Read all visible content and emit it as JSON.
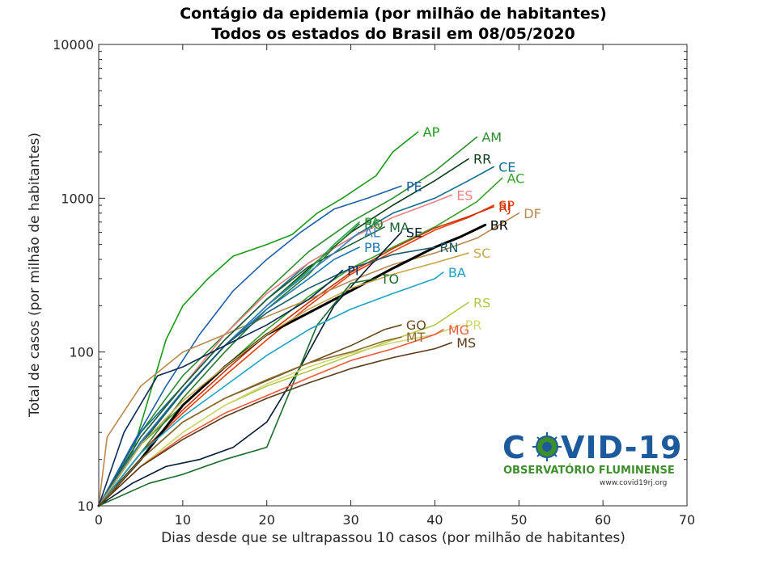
{
  "chart_data": {
    "type": "line",
    "title": "Contágio da epidemia (por milhão de habitantes)",
    "subtitle": "Todos os estados do Brasil em 08/05/2020",
    "xlabel": "Dias desde que se ultrapassou 10 casos (por milhão de habitantes)",
    "ylabel": "Total de casos (por milhão de habitantes)",
    "xlim": [
      0,
      70
    ],
    "ylim": [
      10,
      10000
    ],
    "yscale": "log",
    "xticks": [
      "0",
      "10",
      "20",
      "30",
      "40",
      "50",
      "60",
      "70"
    ],
    "yticks": [
      "10",
      "100",
      "1000",
      "10000"
    ],
    "grid": false,
    "series": [
      {
        "name": "AP",
        "color": "#1a9a1a",
        "points": [
          [
            0,
            10
          ],
          [
            4,
            22
          ],
          [
            8,
            120
          ],
          [
            10,
            200
          ],
          [
            13,
            300
          ],
          [
            16,
            420
          ],
          [
            20,
            500
          ],
          [
            23,
            580
          ],
          [
            26,
            800
          ],
          [
            29,
            1000
          ],
          [
            33,
            1400
          ],
          [
            35,
            2000
          ],
          [
            38,
            2700
          ]
        ]
      },
      {
        "name": "AM",
        "color": "#2e8b2e",
        "points": [
          [
            0,
            10
          ],
          [
            5,
            30
          ],
          [
            10,
            70
          ],
          [
            15,
            130
          ],
          [
            20,
            250
          ],
          [
            25,
            450
          ],
          [
            30,
            700
          ],
          [
            35,
            1000
          ],
          [
            40,
            1500
          ],
          [
            45,
            2500
          ]
        ]
      },
      {
        "name": "RR",
        "color": "#0d3d1a",
        "points": [
          [
            0,
            10
          ],
          [
            5,
            25
          ],
          [
            10,
            55
          ],
          [
            15,
            110
          ],
          [
            20,
            200
          ],
          [
            25,
            350
          ],
          [
            30,
            600
          ],
          [
            35,
            900
          ],
          [
            40,
            1300
          ],
          [
            44,
            1800
          ]
        ]
      },
      {
        "name": "CE",
        "color": "#0b6e8c",
        "points": [
          [
            0,
            10
          ],
          [
            5,
            30
          ],
          [
            10,
            60
          ],
          [
            15,
            120
          ],
          [
            20,
            220
          ],
          [
            25,
            380
          ],
          [
            30,
            550
          ],
          [
            35,
            800
          ],
          [
            40,
            1000
          ],
          [
            44,
            1300
          ],
          [
            47,
            1600
          ]
        ]
      },
      {
        "name": "AC",
        "color": "#3aa02a",
        "points": [
          [
            0,
            10
          ],
          [
            5,
            25
          ],
          [
            10,
            45
          ],
          [
            15,
            80
          ],
          [
            20,
            140
          ],
          [
            25,
            230
          ],
          [
            30,
            350
          ],
          [
            35,
            480
          ],
          [
            40,
            650
          ],
          [
            45,
            950
          ],
          [
            48,
            1350
          ]
        ]
      },
      {
        "name": "PE",
        "color": "#1d5ea8",
        "points": [
          [
            0,
            10
          ],
          [
            4,
            25
          ],
          [
            8,
            60
          ],
          [
            12,
            130
          ],
          [
            16,
            250
          ],
          [
            20,
            400
          ],
          [
            24,
            600
          ],
          [
            28,
            850
          ],
          [
            32,
            1000
          ],
          [
            36,
            1200
          ]
        ]
      },
      {
        "name": "ES",
        "color": "#f08080",
        "points": [
          [
            0,
            10
          ],
          [
            5,
            28
          ],
          [
            10,
            60
          ],
          [
            15,
            130
          ],
          [
            20,
            240
          ],
          [
            25,
            380
          ],
          [
            30,
            550
          ],
          [
            35,
            750
          ],
          [
            40,
            950
          ],
          [
            42,
            1050
          ]
        ]
      },
      {
        "name": "SP",
        "color": "#e84010",
        "points": [
          [
            0,
            10
          ],
          [
            5,
            22
          ],
          [
            10,
            40
          ],
          [
            15,
            70
          ],
          [
            20,
            120
          ],
          [
            25,
            200
          ],
          [
            30,
            320
          ],
          [
            35,
            450
          ],
          [
            40,
            620
          ],
          [
            44,
            750
          ],
          [
            47,
            900
          ]
        ]
      },
      {
        "name": "RJ",
        "color": "#cc3300",
        "points": [
          [
            0,
            10
          ],
          [
            5,
            22
          ],
          [
            10,
            42
          ],
          [
            15,
            75
          ],
          [
            20,
            130
          ],
          [
            25,
            210
          ],
          [
            30,
            330
          ],
          [
            35,
            470
          ],
          [
            40,
            640
          ],
          [
            44,
            760
          ],
          [
            47,
            880
          ]
        ]
      },
      {
        "name": "DF",
        "color": "#b8894e",
        "points": [
          [
            0,
            10
          ],
          [
            1,
            28
          ],
          [
            5,
            60
          ],
          [
            10,
            100
          ],
          [
            15,
            130
          ],
          [
            20,
            170
          ],
          [
            25,
            220
          ],
          [
            30,
            290
          ],
          [
            35,
            370
          ],
          [
            40,
            440
          ],
          [
            45,
            550
          ],
          [
            50,
            800
          ]
        ]
      },
      {
        "name": "BR",
        "color": "#000000",
        "points": [
          [
            0,
            10
          ],
          [
            5,
            20
          ],
          [
            10,
            45
          ],
          [
            15,
            80
          ],
          [
            20,
            130
          ],
          [
            25,
            180
          ],
          [
            30,
            250
          ],
          [
            35,
            350
          ],
          [
            40,
            480
          ],
          [
            43,
            560
          ],
          [
            46,
            670
          ]
        ]
      },
      {
        "name": "MA",
        "color": "#1a5e32",
        "points": [
          [
            0,
            10
          ],
          [
            5,
            28
          ],
          [
            10,
            60
          ],
          [
            15,
            120
          ],
          [
            20,
            220
          ],
          [
            25,
            360
          ],
          [
            30,
            500
          ],
          [
            34,
            650
          ]
        ]
      },
      {
        "name": "PA",
        "color": "#22aa44",
        "points": [
          [
            0,
            10
          ],
          [
            5,
            25
          ],
          [
            10,
            55
          ],
          [
            15,
            110
          ],
          [
            20,
            200
          ],
          [
            25,
            340
          ],
          [
            28,
            500
          ],
          [
            31,
            700
          ]
        ]
      },
      {
        "name": "RO",
        "color": "#2b7a2b",
        "points": [
          [
            0,
            10
          ],
          [
            5,
            22
          ],
          [
            10,
            50
          ],
          [
            15,
            100
          ],
          [
            20,
            190
          ],
          [
            25,
            320
          ],
          [
            28,
            480
          ],
          [
            31,
            680
          ]
        ]
      },
      {
        "name": "AL",
        "color": "#3b7fbf",
        "points": [
          [
            0,
            10
          ],
          [
            5,
            26
          ],
          [
            10,
            56
          ],
          [
            15,
            110
          ],
          [
            20,
            200
          ],
          [
            25,
            330
          ],
          [
            28,
            440
          ],
          [
            31,
            600
          ]
        ]
      },
      {
        "name": "SE",
        "color": "#001a33",
        "points": [
          [
            0,
            10
          ],
          [
            4,
            14
          ],
          [
            8,
            18
          ],
          [
            12,
            20
          ],
          [
            16,
            24
          ],
          [
            20,
            35
          ],
          [
            24,
            80
          ],
          [
            28,
            200
          ],
          [
            32,
            350
          ],
          [
            36,
            600
          ]
        ]
      },
      {
        "name": "PB",
        "color": "#1f77b4",
        "points": [
          [
            0,
            10
          ],
          [
            5,
            26
          ],
          [
            10,
            55
          ],
          [
            15,
            110
          ],
          [
            20,
            190
          ],
          [
            25,
            300
          ],
          [
            28,
            400
          ],
          [
            31,
            480
          ]
        ]
      },
      {
        "name": "RN",
        "color": "#17596b",
        "points": [
          [
            0,
            10
          ],
          [
            5,
            25
          ],
          [
            10,
            55
          ],
          [
            15,
            110
          ],
          [
            20,
            180
          ],
          [
            25,
            260
          ],
          [
            30,
            350
          ],
          [
            35,
            430
          ],
          [
            40,
            480
          ]
        ]
      },
      {
        "name": "PI",
        "color": "#0a2a55",
        "points": [
          [
            0,
            10
          ],
          [
            3,
            30
          ],
          [
            7,
            70
          ],
          [
            10,
            80
          ],
          [
            15,
            110
          ],
          [
            20,
            150
          ],
          [
            25,
            220
          ],
          [
            28,
            300
          ],
          [
            29,
            340
          ]
        ]
      },
      {
        "name": "SC",
        "color": "#c8a84e",
        "points": [
          [
            0,
            10
          ],
          [
            5,
            25
          ],
          [
            10,
            48
          ],
          [
            15,
            80
          ],
          [
            20,
            130
          ],
          [
            25,
            190
          ],
          [
            30,
            260
          ],
          [
            35,
            320
          ],
          [
            40,
            380
          ],
          [
            44,
            440
          ]
        ]
      },
      {
        "name": "TO",
        "color": "#1c6b2a",
        "points": [
          [
            0,
            10
          ],
          [
            6,
            14
          ],
          [
            10,
            16
          ],
          [
            15,
            20
          ],
          [
            20,
            24
          ],
          [
            23,
            60
          ],
          [
            26,
            150
          ],
          [
            30,
            280
          ],
          [
            33,
            300
          ]
        ]
      },
      {
        "name": "BA",
        "color": "#1aa3c2",
        "points": [
          [
            0,
            10
          ],
          [
            5,
            22
          ],
          [
            10,
            38
          ],
          [
            15,
            60
          ],
          [
            20,
            95
          ],
          [
            25,
            140
          ],
          [
            30,
            190
          ],
          [
            35,
            240
          ],
          [
            40,
            300
          ],
          [
            41,
            330
          ]
        ]
      },
      {
        "name": "RS",
        "color": "#b5c84a",
        "points": [
          [
            0,
            10
          ],
          [
            5,
            18
          ],
          [
            10,
            30
          ],
          [
            15,
            45
          ],
          [
            20,
            60
          ],
          [
            25,
            75
          ],
          [
            30,
            95
          ],
          [
            35,
            120
          ],
          [
            40,
            150
          ],
          [
            44,
            210
          ]
        ]
      },
      {
        "name": "PR",
        "color": "#cfd870",
        "points": [
          [
            0,
            10
          ],
          [
            5,
            18
          ],
          [
            10,
            30
          ],
          [
            15,
            45
          ],
          [
            20,
            62
          ],
          [
            25,
            80
          ],
          [
            30,
            98
          ],
          [
            35,
            115
          ],
          [
            40,
            130
          ],
          [
            43,
            150
          ]
        ]
      },
      {
        "name": "GO",
        "color": "#6b4a1e",
        "points": [
          [
            0,
            10
          ],
          [
            5,
            20
          ],
          [
            10,
            35
          ],
          [
            15,
            50
          ],
          [
            20,
            65
          ],
          [
            25,
            85
          ],
          [
            30,
            110
          ],
          [
            34,
            140
          ],
          [
            36,
            150
          ]
        ]
      },
      {
        "name": "MG",
        "color": "#f05a3c",
        "points": [
          [
            0,
            10
          ],
          [
            5,
            18
          ],
          [
            10,
            28
          ],
          [
            15,
            40
          ],
          [
            20,
            52
          ],
          [
            25,
            68
          ],
          [
            30,
            88
          ],
          [
            35,
            105
          ],
          [
            40,
            130
          ],
          [
            41,
            140
          ]
        ]
      },
      {
        "name": "MT",
        "color": "#8b6b2e",
        "points": [
          [
            0,
            10
          ],
          [
            5,
            20
          ],
          [
            10,
            35
          ],
          [
            15,
            50
          ],
          [
            20,
            66
          ],
          [
            25,
            85
          ],
          [
            30,
            100
          ],
          [
            34,
            118
          ],
          [
            36,
            125
          ]
        ]
      },
      {
        "name": "MS",
        "color": "#5a3a1a",
        "points": [
          [
            0,
            10
          ],
          [
            5,
            18
          ],
          [
            10,
            27
          ],
          [
            15,
            38
          ],
          [
            20,
            50
          ],
          [
            25,
            63
          ],
          [
            30,
            78
          ],
          [
            35,
            92
          ],
          [
            40,
            105
          ],
          [
            42,
            115
          ]
        ]
      }
    ]
  },
  "logo": {
    "text_a": "C",
    "text_b": "VID-19",
    "subtitle": "OBSERVATÓRIO FLUMINENSE",
    "url": "www.covid19rj.org"
  }
}
